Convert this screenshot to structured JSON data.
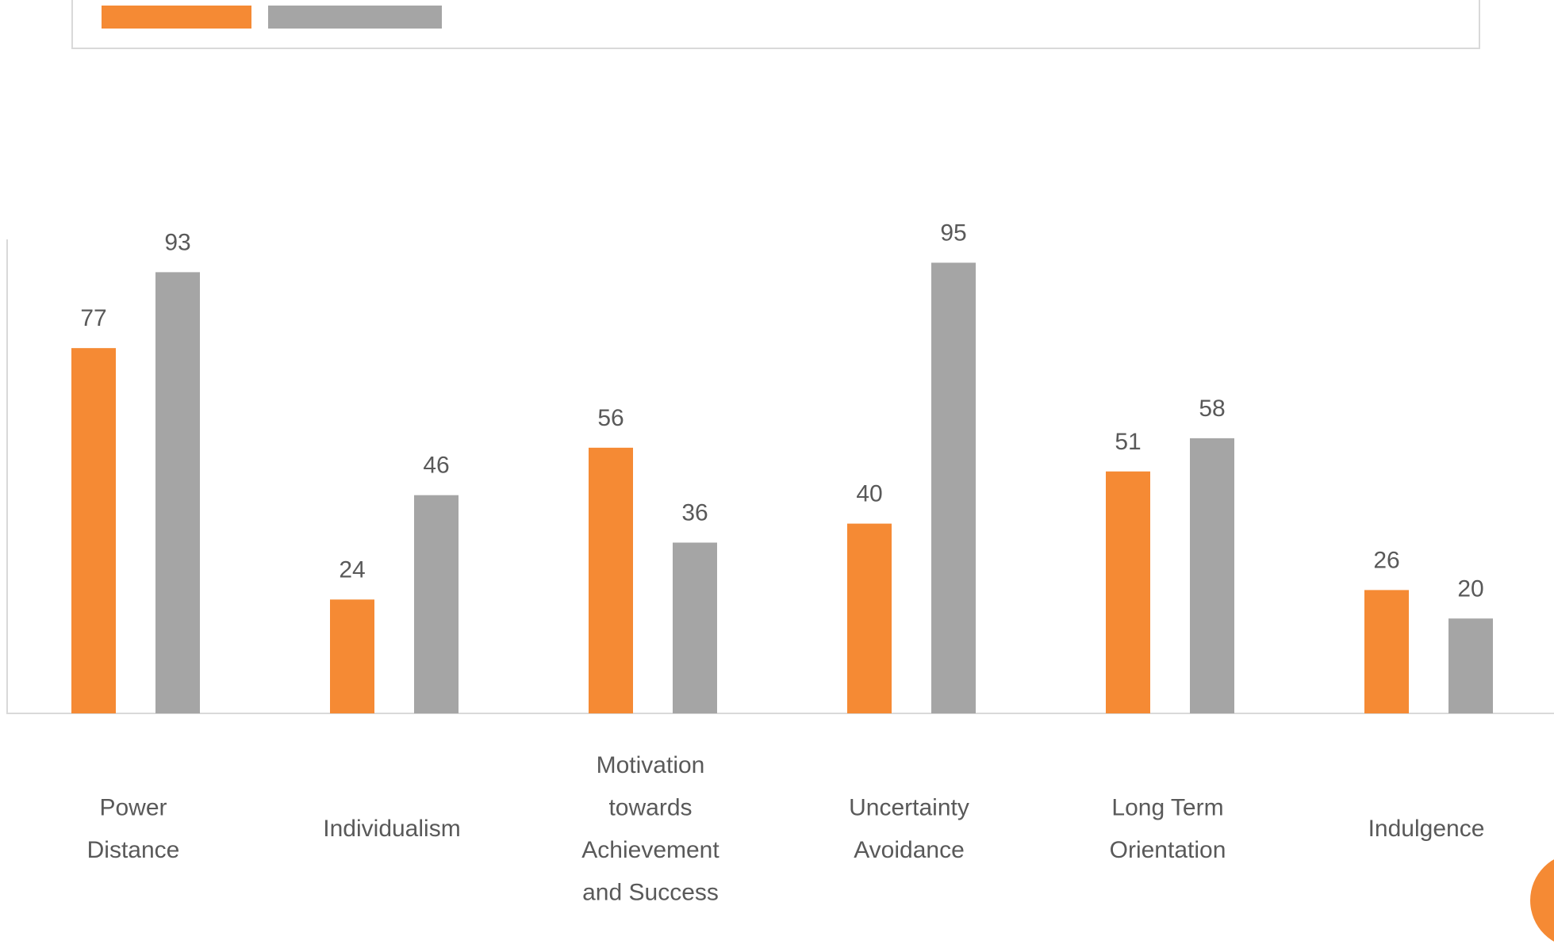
{
  "colors": {
    "series_1": "#f58a34",
    "series_2": "#a5a5a5",
    "axis": "#d9d9d9",
    "text": "#595959",
    "accent_circle": "#f58a34"
  },
  "chart_data": {
    "type": "bar",
    "title": "",
    "xlabel": "",
    "ylabel": "",
    "ylim": [
      0,
      100
    ],
    "grid": false,
    "legend": "top",
    "categories": [
      [
        "Power",
        "Distance"
      ],
      [
        "Individualism"
      ],
      [
        "Motivation",
        "towards",
        "Achievement",
        "and Success"
      ],
      [
        "Uncertainty",
        "Avoidance"
      ],
      [
        "Long Term",
        "Orientation"
      ],
      [
        "Indulgence"
      ]
    ],
    "series": [
      {
        "values": [
          77,
          24,
          56,
          40,
          51,
          26
        ]
      },
      {
        "values": [
          93,
          46,
          36,
          95,
          58,
          20
        ]
      }
    ]
  }
}
